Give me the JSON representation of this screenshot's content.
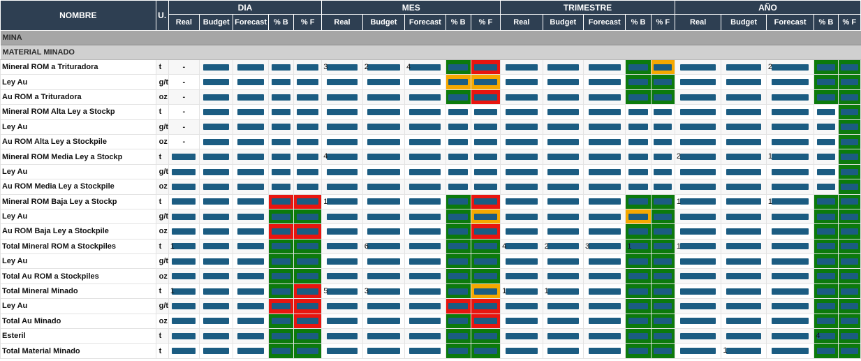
{
  "header": {
    "nombre": "NOMBRE",
    "unidad": "U.",
    "groups": [
      "DIA",
      "MES",
      "TRIMESTRE",
      "AÑO"
    ],
    "subcols": [
      "Real",
      "Budget",
      "Forecast",
      "% B",
      "% F"
    ]
  },
  "sections": {
    "mina": "MINA",
    "material_minado": "MATERIAL MINADO"
  },
  "rows": [
    {
      "name": "Mineral ROM a Trituradora",
      "unit": "t",
      "dia": [
        "-",
        "",
        "",
        "",
        ""
      ],
      "mes": [
        "3",
        "2",
        "4",
        "",
        ""
      ],
      "tri": [
        "",
        "",
        "",
        "",
        ""
      ],
      "ano": [
        "",
        "",
        "2",
        "",
        ""
      ],
      "colors": [
        "",
        "",
        "",
        "",
        "",
        "",
        "",
        "",
        "g",
        "r",
        "",
        "",
        "",
        "g",
        "o",
        "",
        "",
        "",
        "g",
        "g"
      ]
    },
    {
      "name": "Ley Au",
      "unit": "g/t",
      "dia": [
        "-",
        "",
        "",
        "",
        ""
      ],
      "mes": [
        "",
        "",
        "",
        "",
        ""
      ],
      "tri": [
        "",
        "",
        "",
        "",
        ""
      ],
      "ano": [
        "",
        "",
        "",
        "",
        ""
      ],
      "colors": [
        "",
        "",
        "",
        "",
        "",
        "",
        "",
        "",
        "o",
        "o",
        "",
        "",
        "",
        "g",
        "g",
        "",
        "",
        "",
        "g",
        "g"
      ]
    },
    {
      "name": "Au ROM a Trituradora",
      "unit": "oz",
      "dia": [
        "-",
        "",
        "",
        "",
        ""
      ],
      "mes": [
        "",
        "",
        "",
        "",
        ""
      ],
      "tri": [
        "",
        "",
        "",
        "",
        ""
      ],
      "ano": [
        "",
        "",
        "",
        "",
        ""
      ],
      "colors": [
        "",
        "",
        "",
        "",
        "",
        "",
        "",
        "",
        "g",
        "r",
        "",
        "",
        "",
        "g",
        "g",
        "",
        "",
        "",
        "g",
        "g"
      ]
    },
    {
      "name": "Mineral ROM Alta Ley a Stockp",
      "unit": "t",
      "dia": [
        "-",
        "",
        "",
        "",
        ""
      ],
      "mes": [
        "",
        "",
        "",
        "",
        ""
      ],
      "tri": [
        "",
        "",
        "",
        "",
        ""
      ],
      "ano": [
        "",
        "",
        "",
        "",
        ""
      ],
      "colors": [
        "",
        "",
        "",
        "",
        "",
        "",
        "",
        "",
        "",
        "",
        "",
        "",
        "",
        "",
        "",
        "",
        "",
        "",
        "",
        "g"
      ]
    },
    {
      "name": "Ley Au",
      "unit": "g/t",
      "dia": [
        "-",
        "",
        "",
        "",
        ""
      ],
      "mes": [
        "",
        "",
        "",
        "",
        ""
      ],
      "tri": [
        "",
        "",
        "",
        "",
        ""
      ],
      "ano": [
        "",
        "",
        "",
        "",
        ""
      ],
      "colors": [
        "",
        "",
        "",
        "",
        "",
        "",
        "",
        "",
        "",
        "",
        "",
        "",
        "",
        "",
        "",
        "",
        "",
        "",
        "",
        "g"
      ]
    },
    {
      "name": "Au ROM Alta Ley a Stockpile",
      "unit": "oz",
      "dia": [
        "-",
        "",
        "",
        "",
        ""
      ],
      "mes": [
        "",
        "",
        "",
        "",
        ""
      ],
      "tri": [
        "",
        "",
        "",
        "",
        ""
      ],
      "ano": [
        "",
        "",
        "",
        "",
        ""
      ],
      "colors": [
        "",
        "",
        "",
        "",
        "",
        "",
        "",
        "",
        "",
        "",
        "",
        "",
        "",
        "",
        "",
        "",
        "",
        "",
        "",
        "g"
      ]
    },
    {
      "name": "Mineral ROM Media Ley a Stockp",
      "unit": "t",
      "dia": [
        "",
        "",
        "",
        "",
        ""
      ],
      "mes": [
        "4",
        "",
        "",
        "",
        ""
      ],
      "tri": [
        "",
        "",
        "",
        "",
        ""
      ],
      "ano": [
        "2",
        "",
        "1",
        "",
        ""
      ],
      "colors": [
        "",
        "",
        "",
        "",
        "",
        "",
        "",
        "",
        "",
        "",
        "",
        "",
        "",
        "",
        "",
        "",
        "",
        "",
        "",
        "g"
      ]
    },
    {
      "name": "Ley Au",
      "unit": "g/t",
      "dia": [
        "",
        "",
        "",
        "",
        ""
      ],
      "mes": [
        "",
        "",
        "",
        "",
        ""
      ],
      "tri": [
        "",
        "",
        "",
        "",
        ""
      ],
      "ano": [
        "",
        "",
        "",
        "",
        ""
      ],
      "colors": [
        "",
        "",
        "",
        "",
        "",
        "",
        "",
        "",
        "",
        "",
        "",
        "",
        "",
        "",
        "",
        "",
        "",
        "",
        "",
        "g"
      ]
    },
    {
      "name": "Au ROM Media Ley a Stockpile",
      "unit": "oz",
      "dia": [
        "",
        "",
        "",
        "",
        ""
      ],
      "mes": [
        "",
        "",
        "",
        "",
        ""
      ],
      "tri": [
        "",
        "",
        "",
        "",
        ""
      ],
      "ano": [
        "",
        "",
        "",
        "",
        ""
      ],
      "colors": [
        "",
        "",
        "",
        "",
        "",
        "",
        "",
        "",
        "",
        "",
        "",
        "",
        "",
        "",
        "",
        "",
        "",
        "",
        "",
        "g"
      ]
    },
    {
      "name": "Mineral ROM Baja Ley a Stockp",
      "unit": "t",
      "dia": [
        "",
        "",
        "",
        "",
        ""
      ],
      "mes": [
        "1",
        "",
        "",
        "",
        ""
      ],
      "tri": [
        "",
        "",
        "",
        "",
        ""
      ],
      "ano": [
        "1",
        "",
        "1",
        "",
        ""
      ],
      "colors": [
        "",
        "",
        "",
        "r",
        "r",
        "",
        "",
        "",
        "g",
        "r",
        "",
        "",
        "",
        "g",
        "g",
        "",
        "",
        "",
        "g",
        "g"
      ]
    },
    {
      "name": "Ley Au",
      "unit": "g/t",
      "dia": [
        "",
        "",
        "",
        "",
        ""
      ],
      "mes": [
        "",
        "",
        "",
        "",
        ""
      ],
      "tri": [
        "",
        "",
        "",
        "",
        ""
      ],
      "ano": [
        "",
        "",
        "",
        "",
        ""
      ],
      "colors": [
        "",
        "",
        "",
        "g",
        "g",
        "",
        "",
        "",
        "g",
        "o",
        "",
        "",
        "",
        "o",
        "g",
        "",
        "",
        "",
        "g",
        "g"
      ]
    },
    {
      "name": "Au ROM Baja Ley a Stockpile",
      "unit": "oz",
      "dia": [
        "",
        "",
        "",
        "",
        ""
      ],
      "mes": [
        "",
        "",
        "",
        "",
        ""
      ],
      "tri": [
        "",
        "",
        "",
        "",
        ""
      ],
      "ano": [
        "",
        "",
        "",
        "",
        ""
      ],
      "colors": [
        "",
        "",
        "",
        "r",
        "r",
        "",
        "",
        "",
        "g",
        "r",
        "",
        "",
        "",
        "g",
        "g",
        "",
        "",
        "",
        "g",
        "g"
      ]
    },
    {
      "name": "Total Mineral ROM a Stockpiles",
      "unit": "t",
      "dia": [
        "1",
        "",
        "",
        "",
        ""
      ],
      "mes": [
        "",
        "6",
        "",
        "",
        ""
      ],
      "tri": [
        "4",
        "2",
        "3",
        "1",
        ""
      ],
      "ano": [
        "1",
        "",
        "",
        "",
        ""
      ],
      "colors": [
        "",
        "",
        "",
        "g",
        "g",
        "",
        "",
        "",
        "g",
        "g",
        "",
        "",
        "",
        "g",
        "g",
        "",
        "",
        "",
        "g",
        "g"
      ]
    },
    {
      "name": "Ley Au",
      "unit": "g/t",
      "dia": [
        "",
        "",
        "",
        "",
        ""
      ],
      "mes": [
        "",
        "",
        "",
        "",
        ""
      ],
      "tri": [
        "",
        "",
        "",
        "",
        ""
      ],
      "ano": [
        "",
        "",
        "",
        "",
        ""
      ],
      "colors": [
        "",
        "",
        "",
        "g",
        "g",
        "",
        "",
        "",
        "g",
        "g",
        "",
        "",
        "",
        "g",
        "g",
        "",
        "",
        "",
        "g",
        "g"
      ]
    },
    {
      "name": "Total Au ROM a Stockpiles",
      "unit": "oz",
      "dia": [
        "",
        "",
        "",
        "",
        ""
      ],
      "mes": [
        "",
        "",
        "",
        "",
        ""
      ],
      "tri": [
        "",
        "",
        "",
        "",
        ""
      ],
      "ano": [
        "",
        "",
        "",
        "",
        ""
      ],
      "colors": [
        "",
        "",
        "",
        "g",
        "g",
        "",
        "",
        "",
        "g",
        "g",
        "",
        "",
        "",
        "g",
        "g",
        "",
        "",
        "",
        "g",
        "g"
      ]
    },
    {
      "name": "Total Mineral Minado",
      "unit": "t",
      "dia": [
        "1",
        "",
        "",
        "",
        ""
      ],
      "mes": [
        "5",
        "3",
        "",
        "",
        ""
      ],
      "tri": [
        "1",
        "1",
        "",
        "",
        ""
      ],
      "ano": [
        "",
        "",
        "",
        "",
        ""
      ],
      "colors": [
        "",
        "",
        "",
        "g",
        "r",
        "",
        "",
        "",
        "g",
        "o",
        "",
        "",
        "",
        "g",
        "g",
        "",
        "",
        "",
        "g",
        "g"
      ]
    },
    {
      "name": "Ley Au",
      "unit": "g/t",
      "dia": [
        "",
        "",
        "",
        "",
        ""
      ],
      "mes": [
        "",
        "",
        "",
        "",
        ""
      ],
      "tri": [
        "",
        "",
        "",
        "",
        ""
      ],
      "ano": [
        "",
        "",
        "",
        "",
        ""
      ],
      "colors": [
        "",
        "",
        "",
        "r",
        "r",
        "",
        "",
        "",
        "r",
        "r",
        "",
        "",
        "",
        "g",
        "g",
        "",
        "",
        "",
        "g",
        "g"
      ]
    },
    {
      "name": "Total Au Minado",
      "unit": "oz",
      "dia": [
        "",
        "",
        "",
        "",
        ""
      ],
      "mes": [
        "",
        "",
        "",
        "",
        ""
      ],
      "tri": [
        "",
        "",
        "",
        "",
        ""
      ],
      "ano": [
        "",
        "",
        "",
        "",
        ""
      ],
      "colors": [
        "",
        "",
        "",
        "g",
        "r",
        "",
        "",
        "",
        "g",
        "r",
        "",
        "",
        "",
        "g",
        "g",
        "",
        "",
        "",
        "g",
        "g"
      ]
    },
    {
      "name": "Esteril",
      "unit": "t",
      "dia": [
        "",
        "",
        "",
        "",
        ""
      ],
      "mes": [
        "",
        "",
        "",
        "",
        ""
      ],
      "tri": [
        "",
        "",
        "",
        "",
        ""
      ],
      "ano": [
        "",
        "",
        "",
        "4",
        ""
      ],
      "colors": [
        "",
        "",
        "",
        "g",
        "g",
        "",
        "",
        "",
        "g",
        "g",
        "",
        "",
        "",
        "g",
        "g",
        "",
        "",
        "",
        "g",
        "g"
      ]
    },
    {
      "name": "Total Material Minado",
      "unit": "t",
      "dia": [
        "",
        "",
        "",
        "",
        ""
      ],
      "mes": [
        "",
        "",
        "",
        "",
        ""
      ],
      "tri": [
        "",
        "",
        "",
        "",
        ""
      ],
      "ano": [
        "",
        "1",
        "",
        "",
        ""
      ],
      "colors": [
        "",
        "",
        "",
        "g",
        "g",
        "",
        "",
        "",
        "g",
        "g",
        "",
        "",
        "",
        "g",
        "g",
        "",
        "",
        "",
        "g",
        "g"
      ]
    }
  ]
}
